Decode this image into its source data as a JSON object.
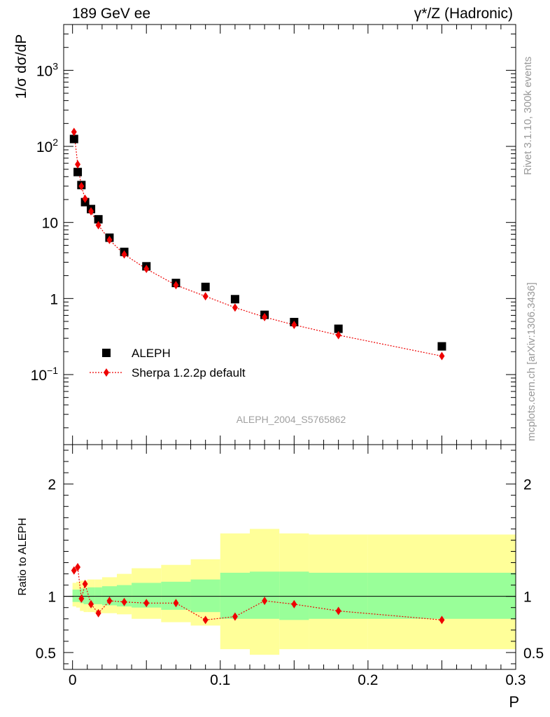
{
  "header": {
    "left": "189 GeV ee",
    "right": "γ*/Z (Hadronic)"
  },
  "side_labels": {
    "rivet": "Rivet 3.1.10,  300k events",
    "mcplots": "mcplots.cern.ch [arXiv:1306.3436]"
  },
  "watermark": "ALEPH_2004_S5765862",
  "chart_data": [
    {
      "type": "scatter",
      "panel": "main",
      "ylabel": "1/σ  dσ/dP",
      "xlabel": "",
      "yscale": "log",
      "ylim": [
        0.012,
        4000
      ],
      "xlim": [
        -0.006,
        0.3
      ],
      "ytick_labels": [
        "10⁻¹",
        "1",
        "10",
        "10²",
        "10³"
      ],
      "ytick_values": [
        0.1,
        1,
        10,
        100,
        1000
      ],
      "legend_position": "bottom-left",
      "series": [
        {
          "name": "ALEPH",
          "color": "#000000",
          "marker": "square",
          "x": [
            0.001,
            0.0035,
            0.006,
            0.0085,
            0.0125,
            0.0175,
            0.025,
            0.035,
            0.05,
            0.07,
            0.09,
            0.11,
            0.13,
            0.15,
            0.18,
            0.25
          ],
          "values": [
            125,
            46,
            31,
            18.5,
            15,
            11,
            6.3,
            4.1,
            2.65,
            1.6,
            1.42,
            0.98,
            0.61,
            0.49,
            0.4,
            0.235
          ]
        },
        {
          "name": "Sherpa 1.2.2p default",
          "color": "#ee0000",
          "marker": "diamond",
          "line": "dotted",
          "x": [
            0.001,
            0.0035,
            0.006,
            0.0085,
            0.0125,
            0.0175,
            0.025,
            0.035,
            0.05,
            0.07,
            0.09,
            0.11,
            0.13,
            0.15,
            0.18,
            0.25
          ],
          "values": [
            155,
            58,
            30,
            20.5,
            14,
            9.2,
            5.9,
            3.8,
            2.45,
            1.5,
            1.07,
            0.76,
            0.57,
            0.45,
            0.33,
            0.175
          ]
        }
      ]
    },
    {
      "type": "scatter",
      "panel": "ratio",
      "ylabel": "Ratio to ALEPH",
      "xlabel": "P",
      "ylim": [
        0.35,
        2.35
      ],
      "xlim": [
        -0.006,
        0.3
      ],
      "ytick_labels": [
        "0.5",
        "1",
        "2"
      ],
      "ytick_values": [
        0.5,
        1,
        2
      ],
      "xtick_labels": [
        "0",
        "0.1",
        "0.2",
        "0.3"
      ],
      "xtick_values": [
        0,
        0.1,
        0.2,
        0.3
      ],
      "reference_line": 1,
      "bands": {
        "bin_edges": [
          0,
          0.0025,
          0.005,
          0.0075,
          0.01,
          0.015,
          0.02,
          0.03,
          0.04,
          0.06,
          0.08,
          0.1,
          0.12,
          0.14,
          0.16,
          0.2,
          0.3
        ],
        "green_color": "#99ff99",
        "yellow_color": "#ffff99",
        "green_low": [
          0.95,
          0.95,
          0.94,
          0.93,
          0.93,
          0.93,
          0.92,
          0.91,
          0.9,
          0.88,
          0.86,
          0.8,
          0.8,
          0.79,
          0.8,
          0.8
        ],
        "green_high": [
          1.06,
          1.06,
          1.07,
          1.07,
          1.08,
          1.08,
          1.09,
          1.1,
          1.12,
          1.13,
          1.15,
          1.21,
          1.22,
          1.22,
          1.21,
          1.21
        ],
        "yellow_low": [
          0.91,
          0.9,
          0.87,
          0.86,
          0.86,
          0.85,
          0.85,
          0.84,
          0.8,
          0.77,
          0.74,
          0.53,
          0.48,
          0.53,
          0.53,
          0.53
        ],
        "yellow_high": [
          1.12,
          1.13,
          1.14,
          1.14,
          1.15,
          1.15,
          1.17,
          1.2,
          1.25,
          1.28,
          1.33,
          1.56,
          1.6,
          1.56,
          1.55,
          1.55
        ]
      },
      "series": [
        {
          "name": "Sherpa 1.2.2p default",
          "color": "#ee0000",
          "marker": "diamond",
          "line": "dotted",
          "x": [
            0.001,
            0.0035,
            0.006,
            0.0085,
            0.0125,
            0.0175,
            0.025,
            0.035,
            0.05,
            0.07,
            0.09,
            0.11,
            0.13,
            0.15,
            0.18,
            0.25
          ],
          "values": [
            1.23,
            1.26,
            0.98,
            1.11,
            0.93,
            0.85,
            0.96,
            0.95,
            0.94,
            0.94,
            0.79,
            0.82,
            0.96,
            0.93,
            0.87,
            0.79
          ]
        }
      ]
    }
  ]
}
